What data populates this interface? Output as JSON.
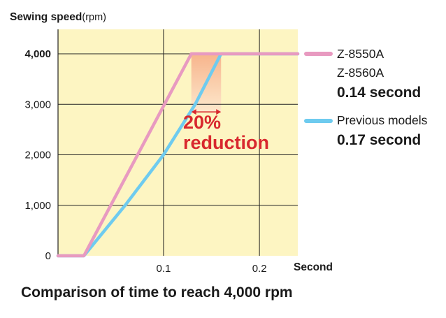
{
  "chart_data": {
    "type": "line",
    "title": "Comparison of time to reach 4,000 rpm",
    "ylabel_main": "Sewing speed",
    "ylabel_unit": "(rpm)",
    "xlabel": "Second",
    "xlim": [
      -0.01,
      0.24
    ],
    "ylim": [
      0,
      4000
    ],
    "x_ticks": [
      {
        "value": 0.1,
        "label": "0.1"
      },
      {
        "value": 0.2,
        "label": "0.2"
      }
    ],
    "y_ticks": [
      {
        "value": 0,
        "label": "0"
      },
      {
        "value": 1000,
        "label": "1,000"
      },
      {
        "value": 2000,
        "label": "2,000"
      },
      {
        "value": 3000,
        "label": "3,000"
      },
      {
        "value": 4000,
        "label": "4,000"
      }
    ],
    "grid": true,
    "legend_placement": "right",
    "series": [
      {
        "name": "Z-8550A / Z-8560A",
        "legend_lines": [
          "Z-8550A",
          "Z-8560A"
        ],
        "time_label": "0.14 second",
        "color": "#e89ac0",
        "points": [
          [
            -0.01,
            0
          ],
          [
            0.017,
            0
          ],
          [
            0.129,
            4000
          ],
          [
            0.24,
            4000
          ]
        ]
      },
      {
        "name": "Previous models",
        "legend_lines": [
          "Previous models"
        ],
        "time_label": "0.17 second",
        "color": "#6ecbef",
        "points": [
          [
            -0.01,
            0
          ],
          [
            0.017,
            0
          ],
          [
            0.06,
            1000
          ],
          [
            0.1,
            2000
          ],
          [
            0.133,
            3000
          ],
          [
            0.16,
            4000
          ],
          [
            0.24,
            4000
          ]
        ]
      }
    ],
    "annotation": {
      "line1": "20%",
      "line2": "reduction",
      "color": "#d8282e",
      "x_from": 0.129,
      "x_to": 0.16,
      "y": 2850
    },
    "colors": {
      "plot_background": "#fdf5c2",
      "grid": "#222222",
      "shade_top": "#f7b48c",
      "shade_bottom": "#fde8cc"
    }
  }
}
